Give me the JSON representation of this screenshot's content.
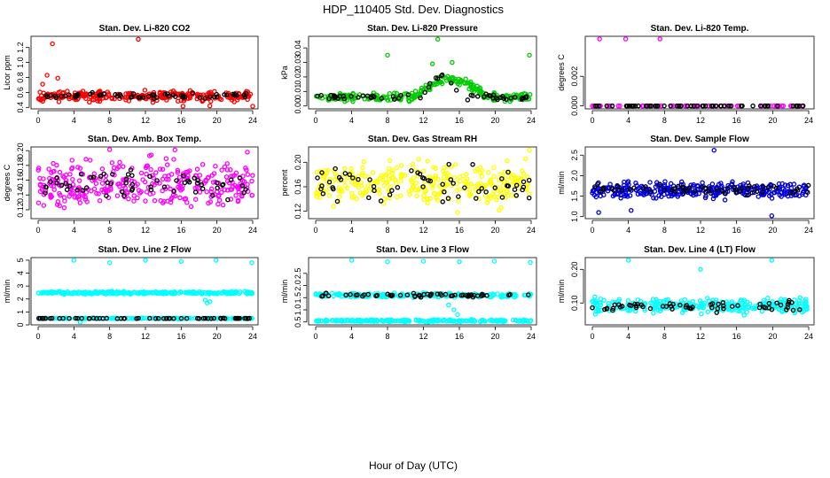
{
  "title": "HDP_110405  Std. Dev. Diagnostics",
  "xlabel": "Hour of Day (UTC)",
  "colors": {
    "reference": "#000000"
  },
  "chart_data": [
    {
      "type": "scatter",
      "title": "Stan. Dev. Li-820 CO2",
      "ylabel": "Licor ppm",
      "xlim": [
        0,
        24
      ],
      "x_ticks": [
        "0",
        "4",
        "8",
        "12",
        "16",
        "20",
        "24"
      ],
      "ylim": [
        0.38,
        1.35
      ],
      "y_ticks": [
        0.4,
        0.6,
        0.8,
        1.0,
        1.2
      ],
      "y_tick_labels": [
        "0.4",
        "0.6",
        "0.8",
        "1.0",
        "1.2"
      ],
      "color": "#ff0000",
      "main": {
        "count": 260,
        "base": 0.55,
        "spread": 0.1
      },
      "reference": {
        "count": 60,
        "base": 0.56,
        "spread": 0.05
      },
      "outliers": [
        [
          1.6,
          1.25
        ],
        [
          11.2,
          1.31
        ],
        [
          1.0,
          0.83
        ],
        [
          2.2,
          0.79
        ],
        [
          0.5,
          0.71
        ],
        [
          16.2,
          0.39
        ],
        [
          24.0,
          0.4
        ],
        [
          19.2,
          0.42
        ]
      ]
    },
    {
      "type": "scatter",
      "title": "Stan. Dev. Li-820 Pressure",
      "ylabel": "kPa",
      "xlim": [
        0,
        24
      ],
      "x_ticks": [
        "0",
        "4",
        "8",
        "12",
        "16",
        "20",
        "24"
      ],
      "ylim": [
        -0.002,
        0.048
      ],
      "y_ticks": [
        0.0,
        0.01,
        0.02,
        0.03,
        0.04
      ],
      "y_tick_labels": [
        "0.00",
        "0.01",
        "0.02",
        "0.03",
        "0.04"
      ],
      "color": "#00cc00",
      "main": {
        "count": 260,
        "base": 0.006,
        "spread": 0.004,
        "bump": {
          "start": 11,
          "end": 19,
          "height": 0.012
        }
      },
      "reference": {
        "count": 60,
        "base": 0.006,
        "spread": 0.003,
        "bump": {
          "start": 12,
          "end": 16,
          "height": 0.014
        }
      },
      "outliers": [
        [
          8.0,
          0.035
        ],
        [
          13.6,
          0.046
        ],
        [
          23.8,
          0.035
        ],
        [
          13.0,
          0.029
        ],
        [
          15.2,
          0.03
        ]
      ]
    },
    {
      "type": "scatter",
      "title": "Stan. Dev. Li-820 Temp.",
      "ylabel": "degrees C",
      "xlim": [
        0,
        24
      ],
      "x_ticks": [
        "0",
        "4",
        "8",
        "12",
        "16",
        "20",
        "24"
      ],
      "ylim": [
        -0.0002,
        0.0047
      ],
      "y_ticks": [
        0.0,
        0.002
      ],
      "y_tick_labels": [
        "0.000",
        "0.002"
      ],
      "color": "#ff00ff",
      "main": {
        "count": 60,
        "base": 0.0,
        "spread": 0.0
      },
      "reference": {
        "count": 60,
        "base": 0.0,
        "spread": 0.0
      },
      "outliers": [
        [
          0.8,
          0.0046
        ],
        [
          3.7,
          0.0046
        ],
        [
          7.5,
          0.0046
        ],
        [
          0.0,
          0.0
        ]
      ]
    },
    {
      "type": "scatter",
      "title": "Stan. Dev. Amb. Box Temp.",
      "ylabel": "degrees C",
      "xlim": [
        0,
        24
      ],
      "x_ticks": [
        "0",
        "4",
        "8",
        "12",
        "16",
        "20",
        "24"
      ],
      "ylim": [
        0.108,
        0.205
      ],
      "y_ticks": [
        0.12,
        0.14,
        0.16,
        0.18,
        0.2
      ],
      "y_tick_labels": [
        "0.12",
        "0.14",
        "0.16",
        "0.18",
        "0.20"
      ],
      "color": "#ff00ff",
      "main": {
        "count": 320,
        "base": 0.155,
        "spread": 0.045
      },
      "reference": {
        "count": 60,
        "base": 0.155,
        "spread": 0.03
      },
      "outliers": [
        [
          8.0,
          0.202
        ],
        [
          15.3,
          0.201
        ],
        [
          23.4,
          0.198
        ]
      ]
    },
    {
      "type": "scatter",
      "title": "Stan. Dev. Gas Stream RH",
      "ylabel": "percent",
      "xlim": [
        0,
        24
      ],
      "x_ticks": [
        "0",
        "4",
        "8",
        "12",
        "16",
        "20",
        "24"
      ],
      "ylim": [
        0.108,
        0.225
      ],
      "y_ticks": [
        0.12,
        0.16,
        0.2
      ],
      "y_tick_labels": [
        "0.12",
        "0.16",
        "0.20"
      ],
      "color": "#ffff00",
      "main": {
        "count": 320,
        "base": 0.165,
        "spread": 0.05
      },
      "reference": {
        "count": 60,
        "base": 0.165,
        "spread": 0.04
      },
      "outliers": [
        [
          23.8,
          0.22
        ],
        [
          15.8,
          0.118
        ]
      ]
    },
    {
      "type": "scatter",
      "title": "Stan. Dev. Sample Flow",
      "ylabel": "ml/min",
      "xlim": [
        0,
        24
      ],
      "x_ticks": [
        "0",
        "4",
        "8",
        "12",
        "16",
        "20",
        "24"
      ],
      "ylim": [
        0.95,
        2.7
      ],
      "y_ticks": [
        1.0,
        1.5,
        2.0,
        2.5
      ],
      "y_tick_labels": [
        "1.0",
        "1.5",
        "2.0",
        "2.5"
      ],
      "color": "#0000dd",
      "main": {
        "count": 320,
        "base": 1.65,
        "spread": 0.28
      },
      "reference": {
        "count": 60,
        "base": 1.65,
        "spread": 0.18
      },
      "outliers": [
        [
          13.5,
          2.62
        ],
        [
          0.7,
          1.1
        ],
        [
          19.9,
          1.02
        ],
        [
          4.3,
          1.15
        ]
      ]
    },
    {
      "type": "scatter",
      "title": "Stan. Dev. Line 2 Flow",
      "ylabel": "ml/min",
      "xlim": [
        0,
        24
      ],
      "x_ticks": [
        "0",
        "4",
        "8",
        "12",
        "16",
        "20",
        "24"
      ],
      "ylim": [
        0,
        5.2
      ],
      "y_ticks": [
        0,
        1,
        2,
        3,
        4,
        5
      ],
      "y_tick_labels": [
        "0",
        "1",
        "2",
        "3",
        "4",
        "5"
      ],
      "color": "#00ffff",
      "bands": [
        {
          "count": 260,
          "base": 2.48,
          "spread": 0.14
        },
        {
          "count": 200,
          "base": 0.5,
          "spread": 0.05
        }
      ],
      "reference": {
        "count": 60,
        "base": 0.5,
        "spread": 0.03
      },
      "outliers": [
        [
          4.0,
          5.0
        ],
        [
          8.0,
          4.8
        ],
        [
          12.0,
          5.0
        ],
        [
          16.0,
          4.9
        ],
        [
          19.9,
          5.0
        ],
        [
          23.9,
          4.8
        ],
        [
          18.9,
          1.7
        ],
        [
          19.2,
          1.8
        ],
        [
          18.7,
          1.9
        ],
        [
          4.7,
          0.2
        ]
      ]
    },
    {
      "type": "scatter",
      "title": "Stan. Dev. Line 3 Flow",
      "ylabel": "ml/min",
      "xlim": [
        0,
        24
      ],
      "x_ticks": [
        "0",
        "4",
        "8",
        "12",
        "16",
        "20",
        "24"
      ],
      "ylim": [
        0.38,
        3.15
      ],
      "y_ticks": [
        0.5,
        1.0,
        1.5,
        2.0,
        2.5
      ],
      "y_tick_labels": [
        "0.5",
        "1.0",
        "1.5",
        "2.0",
        "2.5"
      ],
      "color": "#00ffff",
      "bands": [
        {
          "count": 240,
          "base": 1.6,
          "spread": 0.12
        },
        {
          "count": 240,
          "base": 0.55,
          "spread": 0.06
        }
      ],
      "reference": {
        "count": 60,
        "base": 1.6,
        "spread": 0.1
      },
      "outliers": [
        [
          4.0,
          3.1
        ],
        [
          8.0,
          2.98
        ],
        [
          12.0,
          3.0
        ],
        [
          16.0,
          2.98
        ],
        [
          19.9,
          3.0
        ],
        [
          23.9,
          2.95
        ],
        [
          15.4,
          1.0
        ],
        [
          15.8,
          0.8
        ],
        [
          14.8,
          1.2
        ]
      ]
    },
    {
      "type": "scatter",
      "title": "Stan. Dev. Line 4 (LT) Flow",
      "ylabel": "ml/min",
      "xlim": [
        0,
        24
      ],
      "x_ticks": [
        "0",
        "4",
        "8",
        "12",
        "16",
        "20",
        "24"
      ],
      "ylim": [
        0.035,
        0.235
      ],
      "y_ticks": [
        0.1,
        0.2
      ],
      "y_tick_labels": [
        "0.10",
        "0.20"
      ],
      "color": "#00ffff",
      "main": {
        "count": 300,
        "base": 0.092,
        "spread": 0.03
      },
      "reference": {
        "count": 60,
        "base": 0.09,
        "spread": 0.02
      },
      "outliers": [
        [
          4.0,
          0.228
        ],
        [
          12.0,
          0.2
        ],
        [
          19.9,
          0.228
        ]
      ]
    }
  ]
}
